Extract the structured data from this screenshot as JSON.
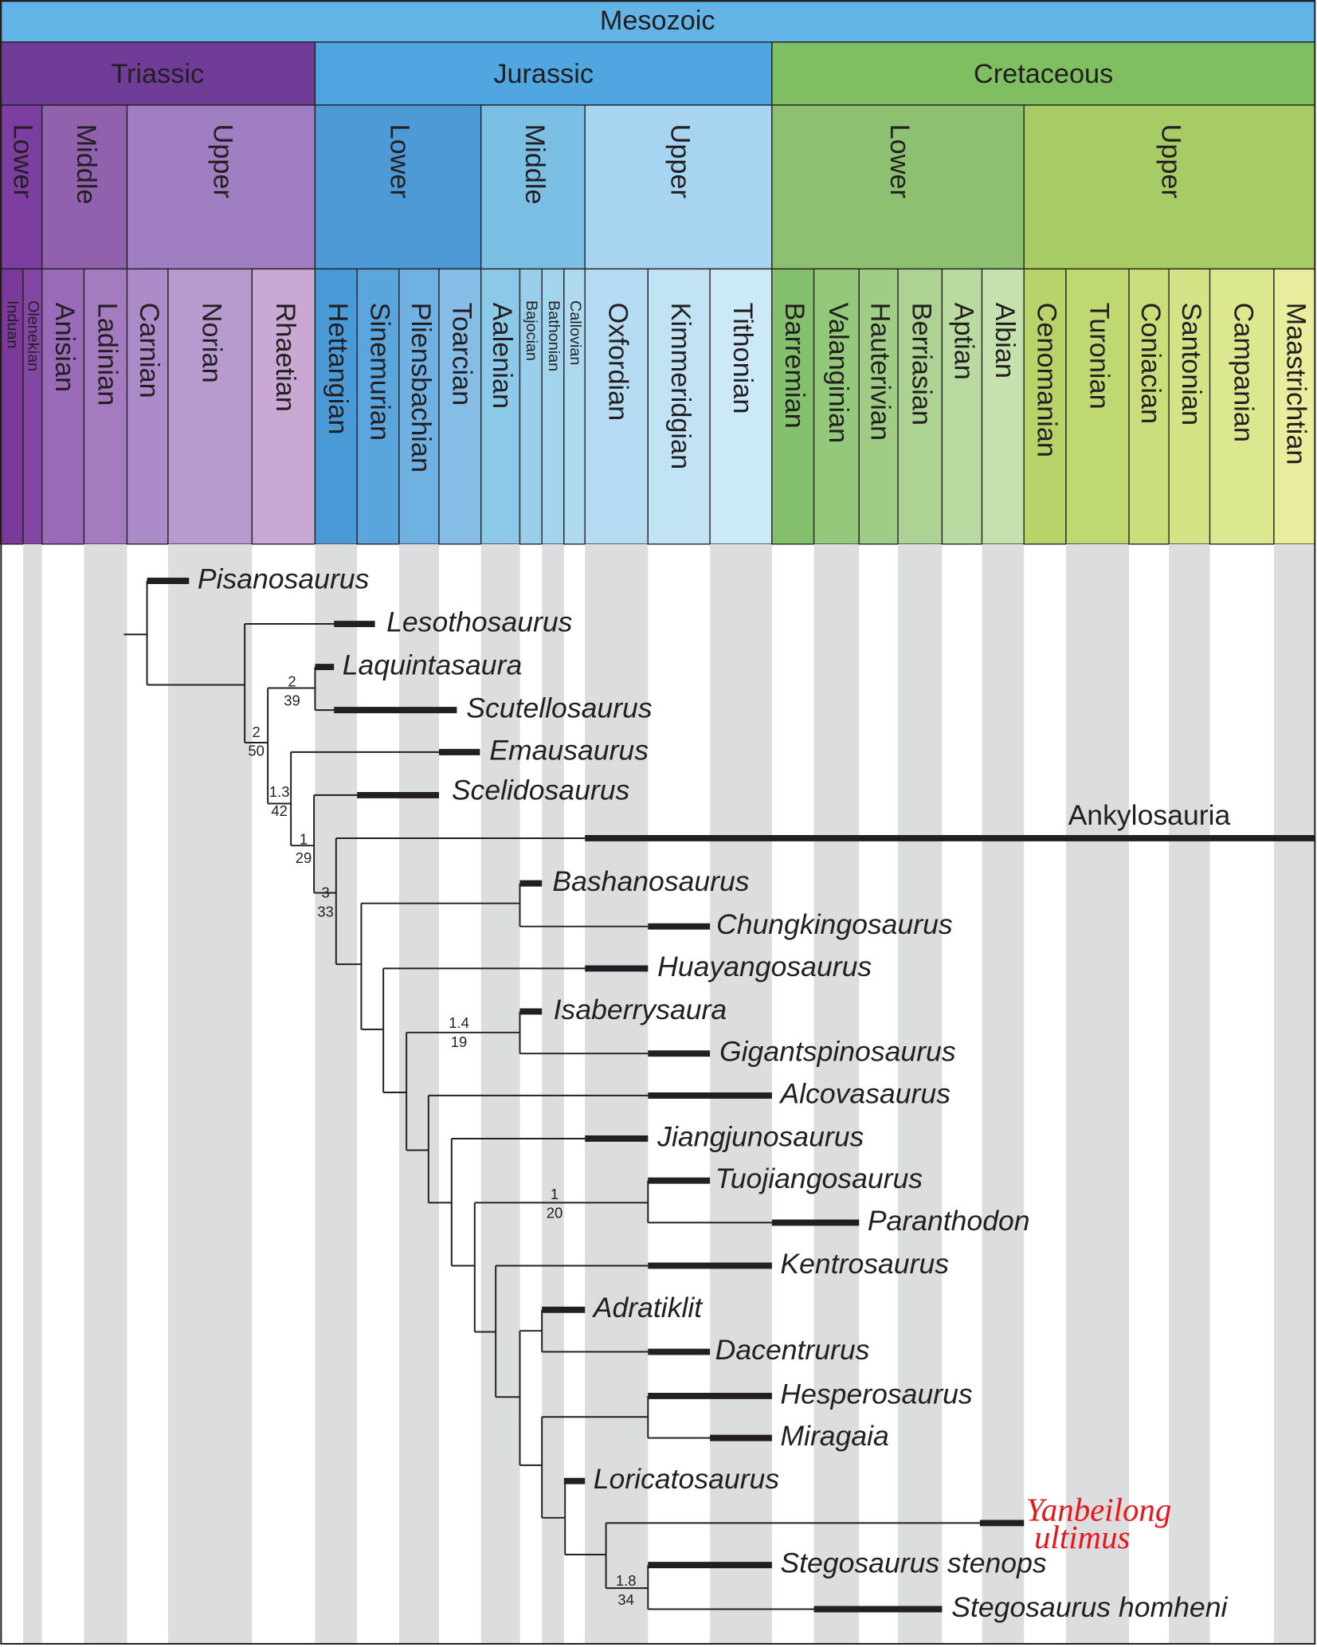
{
  "era": "Mesozoic",
  "periods": [
    "Triassic",
    "Jurassic",
    "Cretaceous"
  ],
  "epochs": [
    "Lower",
    "Middle",
    "Upper",
    "Lower",
    "Middle",
    "Upper",
    "Lower",
    "Upper"
  ],
  "stages": [
    "Induan",
    "Olenekian",
    "Anisian",
    "Ladinian",
    "Carnian",
    "Norian",
    "Rhaetian",
    "Hettangian",
    "Sinemurian",
    "Pliensbachian",
    "Toarcian",
    "Aalenian",
    "Bajocian",
    "Bathonian",
    "Callovian",
    "Oxfordian",
    "Kimmeridgian",
    "Tithonian",
    "Barremian",
    "Valanginian",
    "Hauterivian",
    "Berriasian",
    "Aptian",
    "Albian",
    "Cenomanian",
    "Turonian",
    "Coniacian",
    "Santonian",
    "Campanian",
    "Maastrichtian"
  ],
  "taxa": [
    "Pisanosaurus",
    "Lesothosaurus",
    "Laquintasaura",
    "Scutellosaurus",
    "Emausaurus",
    "Scelidosaurus",
    "Ankylosauria",
    "Bashanosaurus",
    "Chungkingosaurus",
    "Huayangosaurus",
    "Isaberrysaura",
    "Gigantspinosaurus",
    "Alcovasaurus",
    "Jiangjunosaurus",
    "Tuojiangosaurus",
    "Paranthodon",
    "Kentrosaurus",
    "Adratiklit",
    "Dacentrurus",
    "Hesperosaurus",
    "Miragaia",
    "Loricatosaurus",
    "Yanbeilong ultimus",
    "Stegosaurus stenops",
    "Stegosaurus homheni"
  ],
  "supports": [
    {
      "top": "2",
      "bottom": "39"
    },
    {
      "top": "2",
      "bottom": "50"
    },
    {
      "top": "1.3",
      "bottom": "42"
    },
    {
      "top": "1",
      "bottom": "29"
    },
    {
      "top": "3",
      "bottom": "33"
    },
    {
      "top": "1.4",
      "bottom": "19"
    },
    {
      "top": "1",
      "bottom": "20"
    },
    {
      "top": "1.8",
      "bottom": "34"
    }
  ]
}
